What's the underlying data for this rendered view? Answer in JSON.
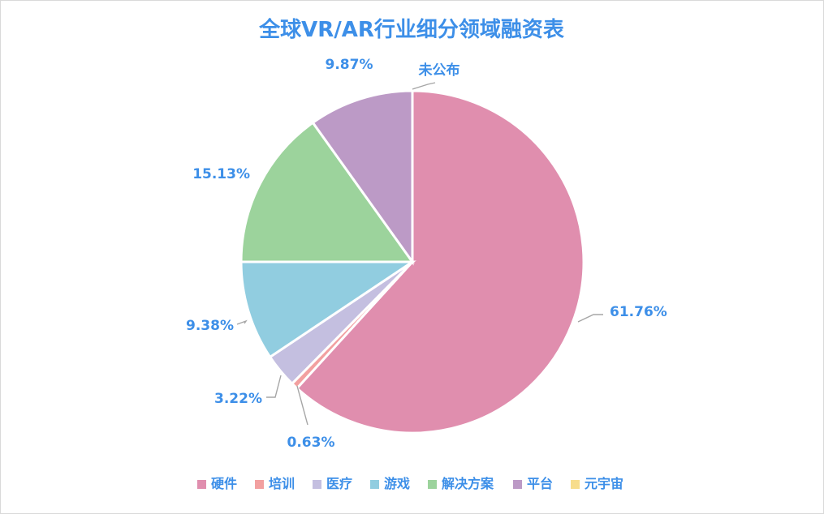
{
  "chart_data": {
    "type": "pie",
    "title": "全球VR/AR行业细分领域融资表",
    "slices": [
      {
        "name": "硬件",
        "value": 61.76,
        "label": "61.76%",
        "color": "#e08eae"
      },
      {
        "name": "培训",
        "value": 0.63,
        "label": "0.63%",
        "color": "#f2a0a0"
      },
      {
        "name": "医疗",
        "value": 3.22,
        "label": "3.22%",
        "color": "#c4bfe0"
      },
      {
        "name": "游戏",
        "value": 9.38,
        "label": "9.38%",
        "color": "#91cde0"
      },
      {
        "name": "解决方案",
        "value": 15.13,
        "label": "15.13%",
        "color": "#9cd39c"
      },
      {
        "name": "平台",
        "value": 9.87,
        "label": "9.87%",
        "color": "#bc9ac6"
      },
      {
        "name": "元宇宙",
        "value": 0,
        "label": "未公布",
        "color": "#f7dd8c"
      }
    ],
    "legend_position": "bottom",
    "label_color": "#3d8fe8"
  }
}
